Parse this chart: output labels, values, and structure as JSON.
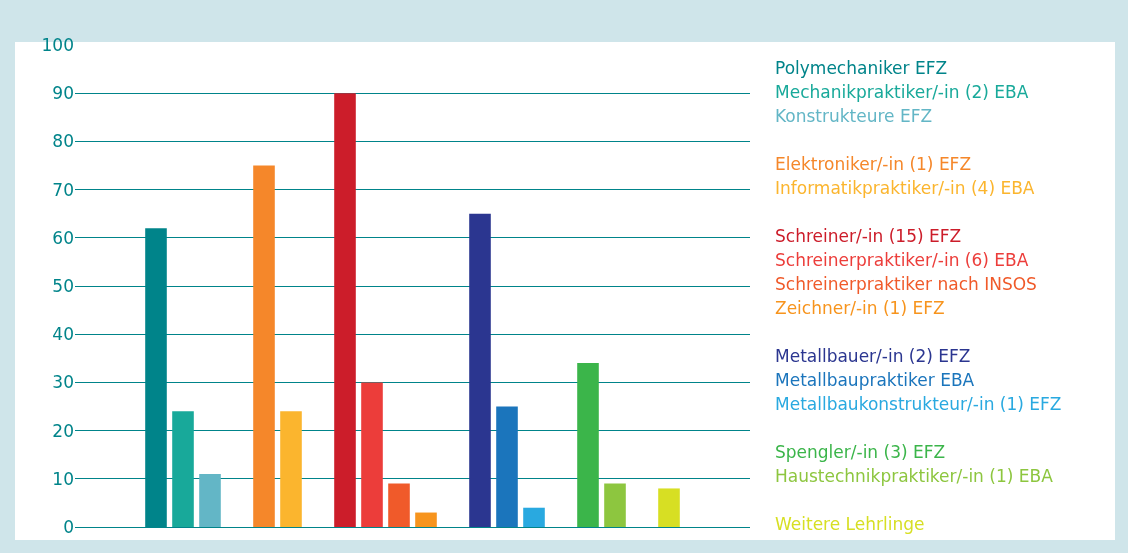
{
  "chart_data": {
    "type": "bar",
    "categories": [
      null,
      null,
      null,
      null,
      null,
      null,
      null,
      null,
      null,
      null,
      null,
      null,
      null,
      null,
      null,
      null,
      null,
      null,
      null,
      null,
      null,
      null,
      null,
      null
    ],
    "series": [
      {
        "name": "Polymechaniker EFZ",
        "color": "#00848a",
        "values": [
          null,
          null,
          62,
          null,
          null,
          null,
          null,
          null,
          null,
          null,
          null,
          null,
          null,
          null,
          null,
          null,
          null,
          null,
          null,
          null,
          null,
          null,
          null,
          null
        ]
      },
      {
        "name": "Mechanikpraktiker/-in (2) EBA",
        "color": "#18a99a",
        "values": [
          null,
          null,
          null,
          24,
          null,
          null,
          null,
          null,
          null,
          null,
          null,
          null,
          null,
          null,
          null,
          null,
          null,
          null,
          null,
          null,
          null,
          null,
          null,
          null
        ]
      },
      {
        "name": "Konstrukteure EFZ",
        "color": "#63b6c6",
        "values": [
          null,
          null,
          null,
          null,
          11,
          null,
          null,
          null,
          null,
          null,
          null,
          null,
          null,
          null,
          null,
          null,
          null,
          null,
          null,
          null,
          null,
          null,
          null,
          null
        ]
      },
      {
        "name": "Elektroniker/-in (1) EFZ",
        "color": "#f5872a",
        "values": [
          null,
          null,
          null,
          null,
          null,
          null,
          75,
          null,
          null,
          null,
          null,
          null,
          null,
          null,
          null,
          null,
          null,
          null,
          null,
          null,
          null,
          null,
          null,
          null
        ]
      },
      {
        "name": "Informatikpraktiker/-in (4) EBA",
        "color": "#fbb52e",
        "values": [
          null,
          null,
          null,
          null,
          null,
          null,
          null,
          24,
          null,
          null,
          null,
          null,
          null,
          null,
          null,
          null,
          null,
          null,
          null,
          null,
          null,
          null,
          null,
          null
        ]
      },
      {
        "name": "Schreiner/-in (15) EFZ",
        "color": "#cc1d2a",
        "values": [
          null,
          null,
          null,
          null,
          null,
          null,
          null,
          null,
          null,
          90,
          null,
          null,
          null,
          null,
          null,
          null,
          null,
          null,
          null,
          null,
          null,
          null,
          null,
          null
        ]
      },
      {
        "name": "Schreinerpraktiker/-in (6) EBA",
        "color": "#ec3d3a",
        "values": [
          null,
          null,
          null,
          null,
          null,
          null,
          null,
          null,
          null,
          null,
          30,
          null,
          null,
          null,
          null,
          null,
          null,
          null,
          null,
          null,
          null,
          null,
          null,
          null
        ]
      },
      {
        "name": "Schreinerpraktiker nach INSOS",
        "color": "#f05a2a",
        "values": [
          null,
          null,
          null,
          null,
          null,
          null,
          null,
          null,
          null,
          null,
          null,
          9,
          null,
          null,
          null,
          null,
          null,
          null,
          null,
          null,
          null,
          null,
          null,
          null
        ]
      },
      {
        "name": "Zeichner/-in (1) EFZ",
        "color": "#f7941d",
        "values": [
          null,
          null,
          null,
          null,
          null,
          null,
          null,
          null,
          null,
          null,
          null,
          null,
          3,
          null,
          null,
          null,
          null,
          null,
          null,
          null,
          null,
          null,
          null,
          null
        ]
      },
      {
        "name": "Metallbauer/-in (2) EFZ",
        "color": "#2b3690",
        "values": [
          null,
          null,
          null,
          null,
          null,
          null,
          null,
          null,
          null,
          null,
          null,
          null,
          null,
          null,
          65,
          null,
          null,
          null,
          null,
          null,
          null,
          null,
          null,
          null
        ]
      },
      {
        "name": "Metallbaupraktiker EBA",
        "color": "#1b75bc",
        "values": [
          null,
          null,
          null,
          null,
          null,
          null,
          null,
          null,
          null,
          null,
          null,
          null,
          null,
          null,
          null,
          25,
          null,
          null,
          null,
          null,
          null,
          null,
          null,
          null
        ]
      },
      {
        "name": "Metallbaukonstrukteur/-in (1) EFZ",
        "color": "#29a9e0",
        "values": [
          null,
          null,
          null,
          null,
          null,
          null,
          null,
          null,
          null,
          null,
          null,
          null,
          null,
          null,
          null,
          null,
          4,
          null,
          null,
          null,
          null,
          null,
          null,
          null
        ]
      },
      {
        "name": "Spengler/-in (3) EFZ",
        "color": "#3bb54a",
        "values": [
          null,
          null,
          null,
          null,
          null,
          null,
          null,
          null,
          null,
          null,
          null,
          null,
          null,
          null,
          null,
          null,
          null,
          null,
          34,
          null,
          null,
          null,
          null,
          null
        ]
      },
      {
        "name": "Haustechnikpraktiker/-in (1) EBA",
        "color": "#8dc63f",
        "values": [
          null,
          null,
          null,
          null,
          null,
          null,
          null,
          null,
          null,
          null,
          null,
          null,
          null,
          null,
          null,
          null,
          null,
          null,
          null,
          9,
          null,
          null,
          null,
          null
        ]
      },
      {
        "name": "Weitere Lehrlinge",
        "color": "#d7df23",
        "values": [
          null,
          null,
          null,
          null,
          null,
          null,
          null,
          null,
          null,
          null,
          null,
          null,
          null,
          null,
          null,
          null,
          null,
          null,
          null,
          null,
          null,
          8,
          null,
          null
        ]
      }
    ],
    "ylim": [
      0,
      100
    ],
    "yticks": [
      0,
      10,
      20,
      30,
      40,
      50,
      60,
      70,
      80,
      90,
      100
    ],
    "grid": "y",
    "legend": "right"
  }
}
